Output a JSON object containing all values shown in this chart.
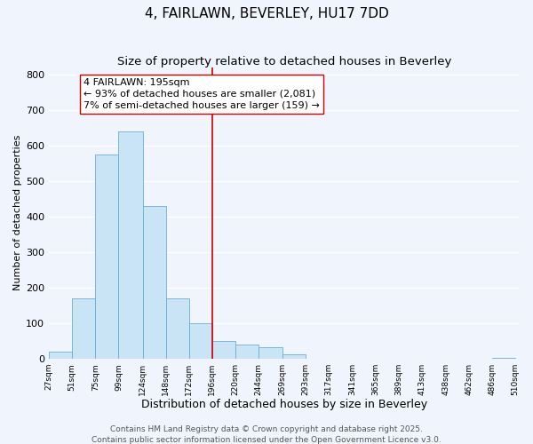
{
  "title": "4, FAIRLAWN, BEVERLEY, HU17 7DD",
  "subtitle": "Size of property relative to detached houses in Beverley",
  "xlabel": "Distribution of detached houses by size in Beverley",
  "ylabel": "Number of detached properties",
  "bar_left_edges": [
    27,
    51,
    75,
    99,
    124,
    148,
    172,
    196,
    220,
    244,
    269,
    293,
    317,
    341,
    365,
    389,
    413,
    438,
    462,
    486
  ],
  "bar_widths": [
    24,
    24,
    24,
    25,
    24,
    24,
    24,
    24,
    24,
    25,
    24,
    24,
    24,
    24,
    24,
    24,
    25,
    24,
    24,
    24
  ],
  "bar_heights": [
    20,
    170,
    575,
    640,
    430,
    170,
    100,
    50,
    40,
    33,
    12,
    1,
    0,
    0,
    0,
    0,
    0,
    0,
    0,
    3
  ],
  "bar_color": "#c8e4f5",
  "bar_edge_color": "#6baed6",
  "vline_x": 196,
  "vline_color": "#cc0000",
  "annotation_line1": "4 FAIRLAWN: 195sqm",
  "annotation_line2": "← 93% of detached houses are smaller (2,081)",
  "annotation_line3": "7% of semi-detached houses are larger (159) →",
  "ylim": [
    0,
    820
  ],
  "yticks": [
    0,
    100,
    200,
    300,
    400,
    500,
    600,
    700,
    800
  ],
  "tick_labels": [
    "27sqm",
    "51sqm",
    "75sqm",
    "99sqm",
    "124sqm",
    "148sqm",
    "172sqm",
    "196sqm",
    "220sqm",
    "244sqm",
    "269sqm",
    "293sqm",
    "317sqm",
    "341sqm",
    "365sqm",
    "389sqm",
    "413sqm",
    "438sqm",
    "462sqm",
    "486sqm",
    "510sqm"
  ],
  "tick_positions": [
    27,
    51,
    75,
    99,
    124,
    148,
    172,
    196,
    220,
    244,
    269,
    293,
    317,
    341,
    365,
    389,
    413,
    438,
    462,
    486,
    510
  ],
  "footnote1": "Contains HM Land Registry data © Crown copyright and database right 2025.",
  "footnote2": "Contains public sector information licensed under the Open Government Licence v3.0.",
  "fig_bg": "#f0f4fc",
  "plot_bg": "#f0f4fc",
  "grid_color": "#ffffff",
  "title_fontsize": 11,
  "subtitle_fontsize": 9.5,
  "xlabel_fontsize": 9,
  "ylabel_fontsize": 8,
  "annotation_fontsize": 8,
  "footnote_fontsize": 6.5,
  "xtick_fontsize": 6.5,
  "ytick_fontsize": 8,
  "xlim_left": 27,
  "xlim_right": 514
}
